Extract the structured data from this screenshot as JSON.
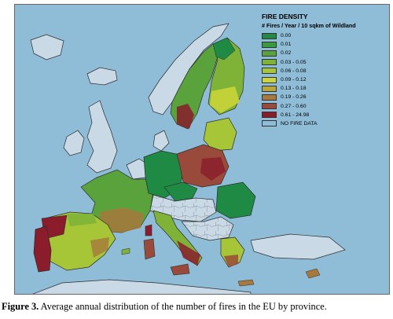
{
  "legend": {
    "title": "FIRE DENSITY",
    "subtitle": "# Fires / Year / 10 sqkm of Wildland",
    "items": [
      {
        "label": "0.00",
        "color": "#1e8a44"
      },
      {
        "label": "0.01",
        "color": "#3a9a3c"
      },
      {
        "label": "0.02",
        "color": "#5aa33c"
      },
      {
        "label": "0.03 - 0.05",
        "color": "#7fb337"
      },
      {
        "label": "0.06 - 0.08",
        "color": "#a6c637"
      },
      {
        "label": "0.09 - 0.12",
        "color": "#cbd43a"
      },
      {
        "label": "0.13 - 0.18",
        "color": "#b9a53a"
      },
      {
        "label": "0.19 - 0.26",
        "color": "#a8783c"
      },
      {
        "label": "0.27 - 0.60",
        "color": "#9a4a3a"
      },
      {
        "label": "0.61 - 24.98",
        "color": "#8a1c2c"
      },
      {
        "label": "NO FIRE DATA",
        "color": "#8fbcd6"
      }
    ]
  },
  "caption": {
    "label": "Figure 3.",
    "text": " Average annual distribution of the number of fires in the EU by province."
  },
  "colors": {
    "sea": "#8fbcd6",
    "nodata_land": "#c9d9e6",
    "border": "#2c2c2c"
  }
}
